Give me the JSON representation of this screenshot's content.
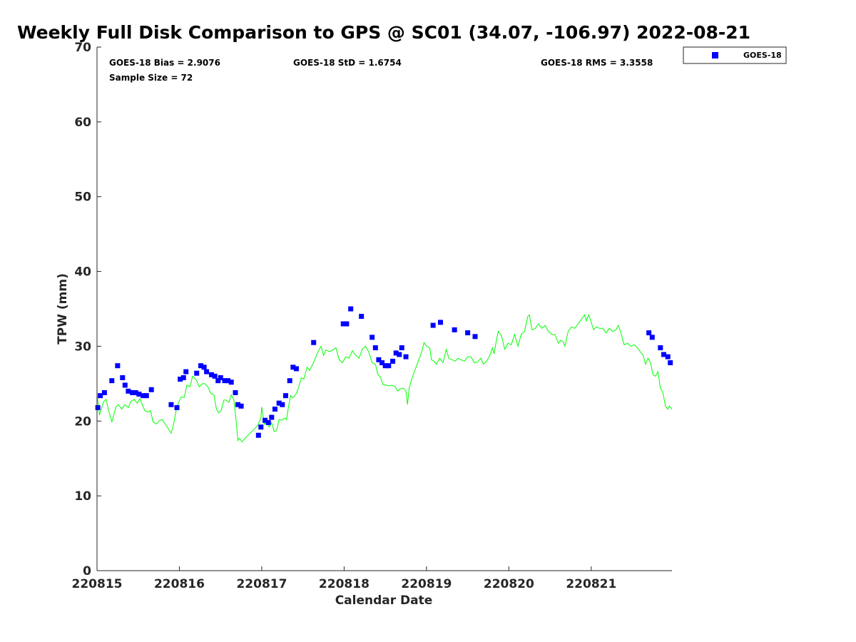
{
  "chart_data": {
    "type": "scatter",
    "title": "Weekly Full Disk Comparison to GPS @ SC01 (34.07, -106.97) 2022-08-21",
    "xlabel": "Calendar Date",
    "ylabel": "TPW (mm)",
    "xlim": [
      0,
      6.98
    ],
    "ylim": [
      0,
      70
    ],
    "x_unit_note_hidden": "",
    "x_ticks": [
      {
        "value": 0,
        "label": "220815"
      },
      {
        "value": 1,
        "label": "220816"
      },
      {
        "value": 2,
        "label": "220817"
      },
      {
        "value": 3,
        "label": "220818"
      },
      {
        "value": 4,
        "label": "220819"
      },
      {
        "value": 5,
        "label": "220820"
      },
      {
        "value": 6,
        "label": "220821"
      }
    ],
    "y_ticks": [
      0,
      10,
      20,
      30,
      40,
      50,
      60,
      70
    ],
    "grid": false,
    "legend": {
      "position": "top-right",
      "entries": [
        {
          "name": "GOES-18",
          "color": "#0000ff",
          "marker": "square"
        }
      ]
    },
    "stats": {
      "bias": "GOES-18 Bias = 2.9076",
      "std": "GOES-18 StD = 1.6754",
      "rms": "GOES-18 RMS = 3.3558",
      "sample": "Sample Size = 72"
    },
    "series": [
      {
        "name": "GOES-18",
        "kind": "scatter",
        "color": "#0000ff",
        "points": [
          [
            0.01,
            21.8
          ],
          [
            0.04,
            23.4
          ],
          [
            0.09,
            23.8
          ],
          [
            0.18,
            25.4
          ],
          [
            0.25,
            27.4
          ],
          [
            0.31,
            25.8
          ],
          [
            0.34,
            24.8
          ],
          [
            0.38,
            24.0
          ],
          [
            0.43,
            23.8
          ],
          [
            0.47,
            23.8
          ],
          [
            0.51,
            23.6
          ],
          [
            0.56,
            23.4
          ],
          [
            0.6,
            23.4
          ],
          [
            0.66,
            24.2
          ],
          [
            0.9,
            22.2
          ],
          [
            0.97,
            21.8
          ],
          [
            1.01,
            25.6
          ],
          [
            1.05,
            25.8
          ],
          [
            1.08,
            26.6
          ],
          [
            1.21,
            26.4
          ],
          [
            1.26,
            27.4
          ],
          [
            1.3,
            27.2
          ],
          [
            1.33,
            26.6
          ],
          [
            1.39,
            26.2
          ],
          [
            1.43,
            26.0
          ],
          [
            1.47,
            25.4
          ],
          [
            1.5,
            25.8
          ],
          [
            1.55,
            25.4
          ],
          [
            1.59,
            25.4
          ],
          [
            1.63,
            25.2
          ],
          [
            1.68,
            23.8
          ],
          [
            1.71,
            22.2
          ],
          [
            1.75,
            22.0
          ],
          [
            1.96,
            18.1
          ],
          [
            1.99,
            19.2
          ],
          [
            2.04,
            20.1
          ],
          [
            2.08,
            19.8
          ],
          [
            2.12,
            20.5
          ],
          [
            2.16,
            21.6
          ],
          [
            2.21,
            22.4
          ],
          [
            2.25,
            22.2
          ],
          [
            2.29,
            23.4
          ],
          [
            2.34,
            25.4
          ],
          [
            2.38,
            27.2
          ],
          [
            2.42,
            27.0
          ],
          [
            2.63,
            30.5
          ],
          [
            2.99,
            33.0
          ],
          [
            3.03,
            33.0
          ],
          [
            3.08,
            35.0
          ],
          [
            3.21,
            34.0
          ],
          [
            3.34,
            31.2
          ],
          [
            3.38,
            29.8
          ],
          [
            3.42,
            28.2
          ],
          [
            3.46,
            27.8
          ],
          [
            3.5,
            27.4
          ],
          [
            3.54,
            27.4
          ],
          [
            3.59,
            28.0
          ],
          [
            3.63,
            29.1
          ],
          [
            3.67,
            28.9
          ],
          [
            3.7,
            29.8
          ],
          [
            3.75,
            28.6
          ],
          [
            4.08,
            32.8
          ],
          [
            4.17,
            33.2
          ],
          [
            4.34,
            32.2
          ],
          [
            4.5,
            31.8
          ],
          [
            4.59,
            31.3
          ],
          [
            6.7,
            31.8
          ],
          [
            6.74,
            31.2
          ],
          [
            6.84,
            29.8
          ],
          [
            6.88,
            28.9
          ],
          [
            6.93,
            28.6
          ],
          [
            6.96,
            27.8
          ]
        ]
      },
      {
        "name": "GPS",
        "kind": "line",
        "color": "#00ff00",
        "points": [
          [
            0.0,
            23.5
          ],
          [
            0.03,
            20.8
          ],
          [
            0.08,
            22.6
          ],
          [
            0.11,
            22.9
          ],
          [
            0.14,
            21.4
          ],
          [
            0.18,
            19.9
          ],
          [
            0.23,
            21.9
          ],
          [
            0.26,
            22.2
          ],
          [
            0.3,
            21.6
          ],
          [
            0.34,
            22.2
          ],
          [
            0.38,
            21.8
          ],
          [
            0.41,
            22.6
          ],
          [
            0.45,
            22.9
          ],
          [
            0.49,
            22.4
          ],
          [
            0.52,
            23.0
          ],
          [
            0.55,
            22.2
          ],
          [
            0.58,
            21.4
          ],
          [
            0.62,
            21.2
          ],
          [
            0.65,
            21.4
          ],
          [
            0.68,
            19.9
          ],
          [
            0.72,
            19.6
          ],
          [
            0.75,
            20.0
          ],
          [
            0.79,
            20.2
          ],
          [
            0.83,
            19.6
          ],
          [
            0.88,
            18.7
          ],
          [
            0.9,
            18.4
          ],
          [
            0.93,
            19.6
          ],
          [
            0.96,
            21.4
          ],
          [
            0.98,
            22.2
          ],
          [
            1.02,
            23.2
          ],
          [
            1.06,
            23.2
          ],
          [
            1.09,
            24.8
          ],
          [
            1.13,
            24.6
          ],
          [
            1.16,
            26.0
          ],
          [
            1.2,
            25.6
          ],
          [
            1.24,
            24.6
          ],
          [
            1.28,
            25.0
          ],
          [
            1.31,
            25.0
          ],
          [
            1.35,
            24.5
          ],
          [
            1.38,
            23.7
          ],
          [
            1.42,
            23.5
          ],
          [
            1.45,
            21.6
          ],
          [
            1.48,
            21.1
          ],
          [
            1.51,
            21.5
          ],
          [
            1.54,
            22.8
          ],
          [
            1.57,
            22.8
          ],
          [
            1.6,
            22.5
          ],
          [
            1.63,
            23.5
          ],
          [
            1.66,
            22.9
          ],
          [
            1.69,
            20.0
          ],
          [
            1.71,
            17.4
          ],
          [
            1.73,
            17.7
          ],
          [
            1.76,
            17.2
          ],
          [
            1.82,
            18.0
          ],
          [
            1.88,
            18.6
          ],
          [
            1.95,
            19.4
          ],
          [
            1.99,
            20.4
          ],
          [
            2.0,
            21.9
          ],
          [
            2.03,
            19.6
          ],
          [
            2.06,
            19.8
          ],
          [
            2.09,
            19.2
          ],
          [
            2.12,
            19.8
          ],
          [
            2.15,
            18.6
          ],
          [
            2.18,
            18.7
          ],
          [
            2.21,
            20.2
          ],
          [
            2.24,
            20.1
          ],
          [
            2.28,
            20.4
          ],
          [
            2.3,
            20.2
          ],
          [
            2.32,
            21.6
          ],
          [
            2.35,
            23.4
          ],
          [
            2.38,
            23.1
          ],
          [
            2.42,
            23.7
          ],
          [
            2.45,
            24.6
          ],
          [
            2.48,
            25.8
          ],
          [
            2.51,
            25.6
          ],
          [
            2.55,
            27.2
          ],
          [
            2.58,
            26.8
          ],
          [
            2.62,
            27.6
          ],
          [
            2.65,
            28.4
          ],
          [
            2.68,
            29.2
          ],
          [
            2.72,
            30.0
          ],
          [
            2.75,
            28.8
          ],
          [
            2.78,
            29.5
          ],
          [
            2.82,
            29.3
          ],
          [
            2.86,
            29.5
          ],
          [
            2.9,
            29.8
          ],
          [
            2.94,
            28.2
          ],
          [
            2.98,
            27.8
          ],
          [
            3.02,
            28.6
          ],
          [
            3.06,
            28.4
          ],
          [
            3.1,
            29.4
          ],
          [
            3.14,
            28.8
          ],
          [
            3.18,
            28.4
          ],
          [
            3.22,
            29.6
          ],
          [
            3.26,
            30.0
          ],
          [
            3.3,
            29.2
          ],
          [
            3.34,
            27.8
          ],
          [
            3.38,
            27.6
          ],
          [
            3.41,
            26.2
          ],
          [
            3.44,
            25.9
          ],
          [
            3.47,
            24.9
          ],
          [
            3.51,
            24.8
          ],
          [
            3.55,
            24.7
          ],
          [
            3.58,
            24.8
          ],
          [
            3.62,
            24.6
          ],
          [
            3.65,
            24.0
          ],
          [
            3.68,
            24.3
          ],
          [
            3.72,
            24.4
          ],
          [
            3.75,
            24.0
          ],
          [
            3.77,
            22.2
          ],
          [
            3.79,
            24.4
          ],
          [
            3.82,
            25.6
          ],
          [
            3.86,
            26.8
          ],
          [
            3.9,
            28.0
          ],
          [
            3.94,
            29.2
          ],
          [
            3.97,
            30.5
          ],
          [
            4.0,
            30.0
          ],
          [
            4.04,
            29.8
          ],
          [
            4.06,
            28.2
          ],
          [
            4.09,
            28.0
          ],
          [
            4.12,
            27.6
          ],
          [
            4.16,
            28.4
          ],
          [
            4.2,
            27.8
          ],
          [
            4.24,
            29.6
          ],
          [
            4.27,
            28.4
          ],
          [
            4.31,
            28.2
          ],
          [
            4.35,
            28.0
          ],
          [
            4.38,
            28.4
          ],
          [
            4.42,
            28.2
          ],
          [
            4.46,
            28.0
          ],
          [
            4.5,
            28.6
          ],
          [
            4.54,
            28.6
          ],
          [
            4.58,
            27.8
          ],
          [
            4.62,
            27.9
          ],
          [
            4.66,
            28.4
          ],
          [
            4.69,
            27.6
          ],
          [
            4.73,
            28.0
          ],
          [
            4.77,
            28.8
          ],
          [
            4.8,
            29.8
          ],
          [
            4.82,
            29.0
          ],
          [
            4.85,
            30.8
          ],
          [
            4.87,
            32.0
          ],
          [
            4.91,
            31.4
          ],
          [
            4.95,
            29.6
          ],
          [
            4.99,
            30.4
          ],
          [
            5.03,
            30.2
          ],
          [
            5.07,
            31.6
          ],
          [
            5.11,
            30.0
          ],
          [
            5.15,
            31.6
          ],
          [
            5.19,
            32.0
          ],
          [
            5.23,
            34.0
          ],
          [
            5.25,
            34.2
          ],
          [
            5.28,
            32.2
          ],
          [
            5.32,
            32.4
          ],
          [
            5.36,
            33.0
          ],
          [
            5.4,
            32.4
          ],
          [
            5.44,
            32.8
          ],
          [
            5.48,
            32.0
          ],
          [
            5.52,
            31.6
          ],
          [
            5.56,
            31.6
          ],
          [
            5.6,
            30.4
          ],
          [
            5.63,
            30.8
          ],
          [
            5.66,
            30.6
          ],
          [
            5.68,
            30.0
          ],
          [
            5.72,
            32.0
          ],
          [
            5.76,
            32.6
          ],
          [
            5.8,
            32.4
          ],
          [
            5.84,
            33.0
          ],
          [
            5.88,
            33.6
          ],
          [
            5.92,
            34.2
          ],
          [
            5.94,
            33.4
          ],
          [
            5.97,
            34.2
          ],
          [
            6.0,
            33.2
          ],
          [
            6.03,
            32.2
          ],
          [
            6.06,
            32.6
          ],
          [
            6.1,
            32.4
          ],
          [
            6.14,
            32.4
          ],
          [
            6.18,
            31.8
          ],
          [
            6.22,
            32.4
          ],
          [
            6.26,
            32.0
          ],
          [
            6.3,
            32.2
          ],
          [
            6.33,
            32.8
          ],
          [
            6.36,
            31.8
          ],
          [
            6.4,
            30.2
          ],
          [
            6.44,
            30.4
          ],
          [
            6.48,
            30.0
          ],
          [
            6.52,
            30.2
          ],
          [
            6.56,
            29.8
          ],
          [
            6.6,
            29.2
          ],
          [
            6.63,
            28.8
          ],
          [
            6.66,
            27.6
          ],
          [
            6.69,
            28.4
          ],
          [
            6.72,
            27.8
          ],
          [
            6.75,
            26.2
          ],
          [
            6.78,
            26.0
          ],
          [
            6.81,
            26.6
          ],
          [
            6.84,
            24.4
          ],
          [
            6.87,
            23.8
          ],
          [
            6.9,
            22.0
          ],
          [
            6.93,
            21.6
          ],
          [
            6.95,
            22.0
          ],
          [
            6.98,
            21.6
          ]
        ]
      }
    ]
  }
}
